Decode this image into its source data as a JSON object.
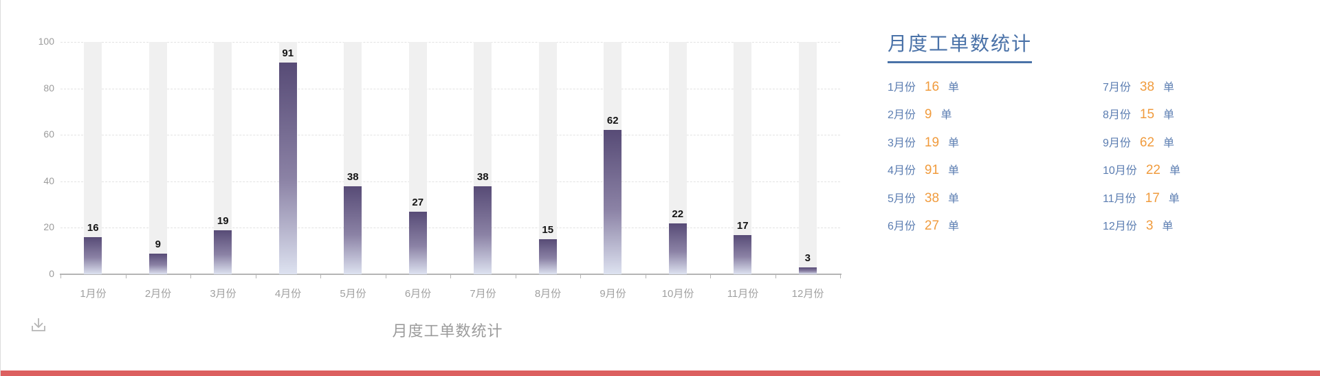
{
  "chart_data": {
    "type": "bar",
    "title": "月度工单数统计",
    "categories": [
      "1月份",
      "2月份",
      "3月份",
      "4月份",
      "5月份",
      "6月份",
      "7月份",
      "8月份",
      "9月份",
      "10月份",
      "11月份",
      "12月份"
    ],
    "values": [
      16,
      9,
      19,
      91,
      38,
      27,
      38,
      15,
      62,
      22,
      17,
      3
    ],
    "xlabel": "",
    "ylabel": "",
    "ylim": [
      0,
      100
    ],
    "y_ticks": [
      0,
      20,
      40,
      60,
      80,
      100
    ],
    "grid": "horizontal-dashed",
    "legend_position": "none",
    "bar_background_bands": true
  },
  "chart": {
    "bottom_title": "月度工单数统计",
    "toolbox": {
      "download_icon": "download-icon"
    }
  },
  "panel": {
    "title": "月度工单数统计",
    "unit": "单",
    "items": [
      {
        "month": "1月份",
        "value": "16"
      },
      {
        "month": "2月份",
        "value": "9"
      },
      {
        "month": "3月份",
        "value": "19"
      },
      {
        "month": "4月份",
        "value": "91"
      },
      {
        "month": "5月份",
        "value": "38"
      },
      {
        "month": "6月份",
        "value": "27"
      },
      {
        "month": "7月份",
        "value": "38"
      },
      {
        "month": "8月份",
        "value": "15"
      },
      {
        "month": "9月份",
        "value": "62"
      },
      {
        "month": "10月份",
        "value": "22"
      },
      {
        "month": "11月份",
        "value": "17"
      },
      {
        "month": "12月份",
        "value": "3"
      }
    ]
  },
  "colors": {
    "bar_top": "#574b76",
    "bar_bottom": "#dde2f0",
    "band": "#f0f0f0",
    "axis": "#b4b4b4",
    "tick_label": "#9b9b9b",
    "value_label": "#141414",
    "panel_title_blue": "#4a72a8",
    "panel_text_blue": "#5b7db1",
    "panel_number_orange": "#f09b3d",
    "bottom_strip_red": "#dc5f5f"
  }
}
